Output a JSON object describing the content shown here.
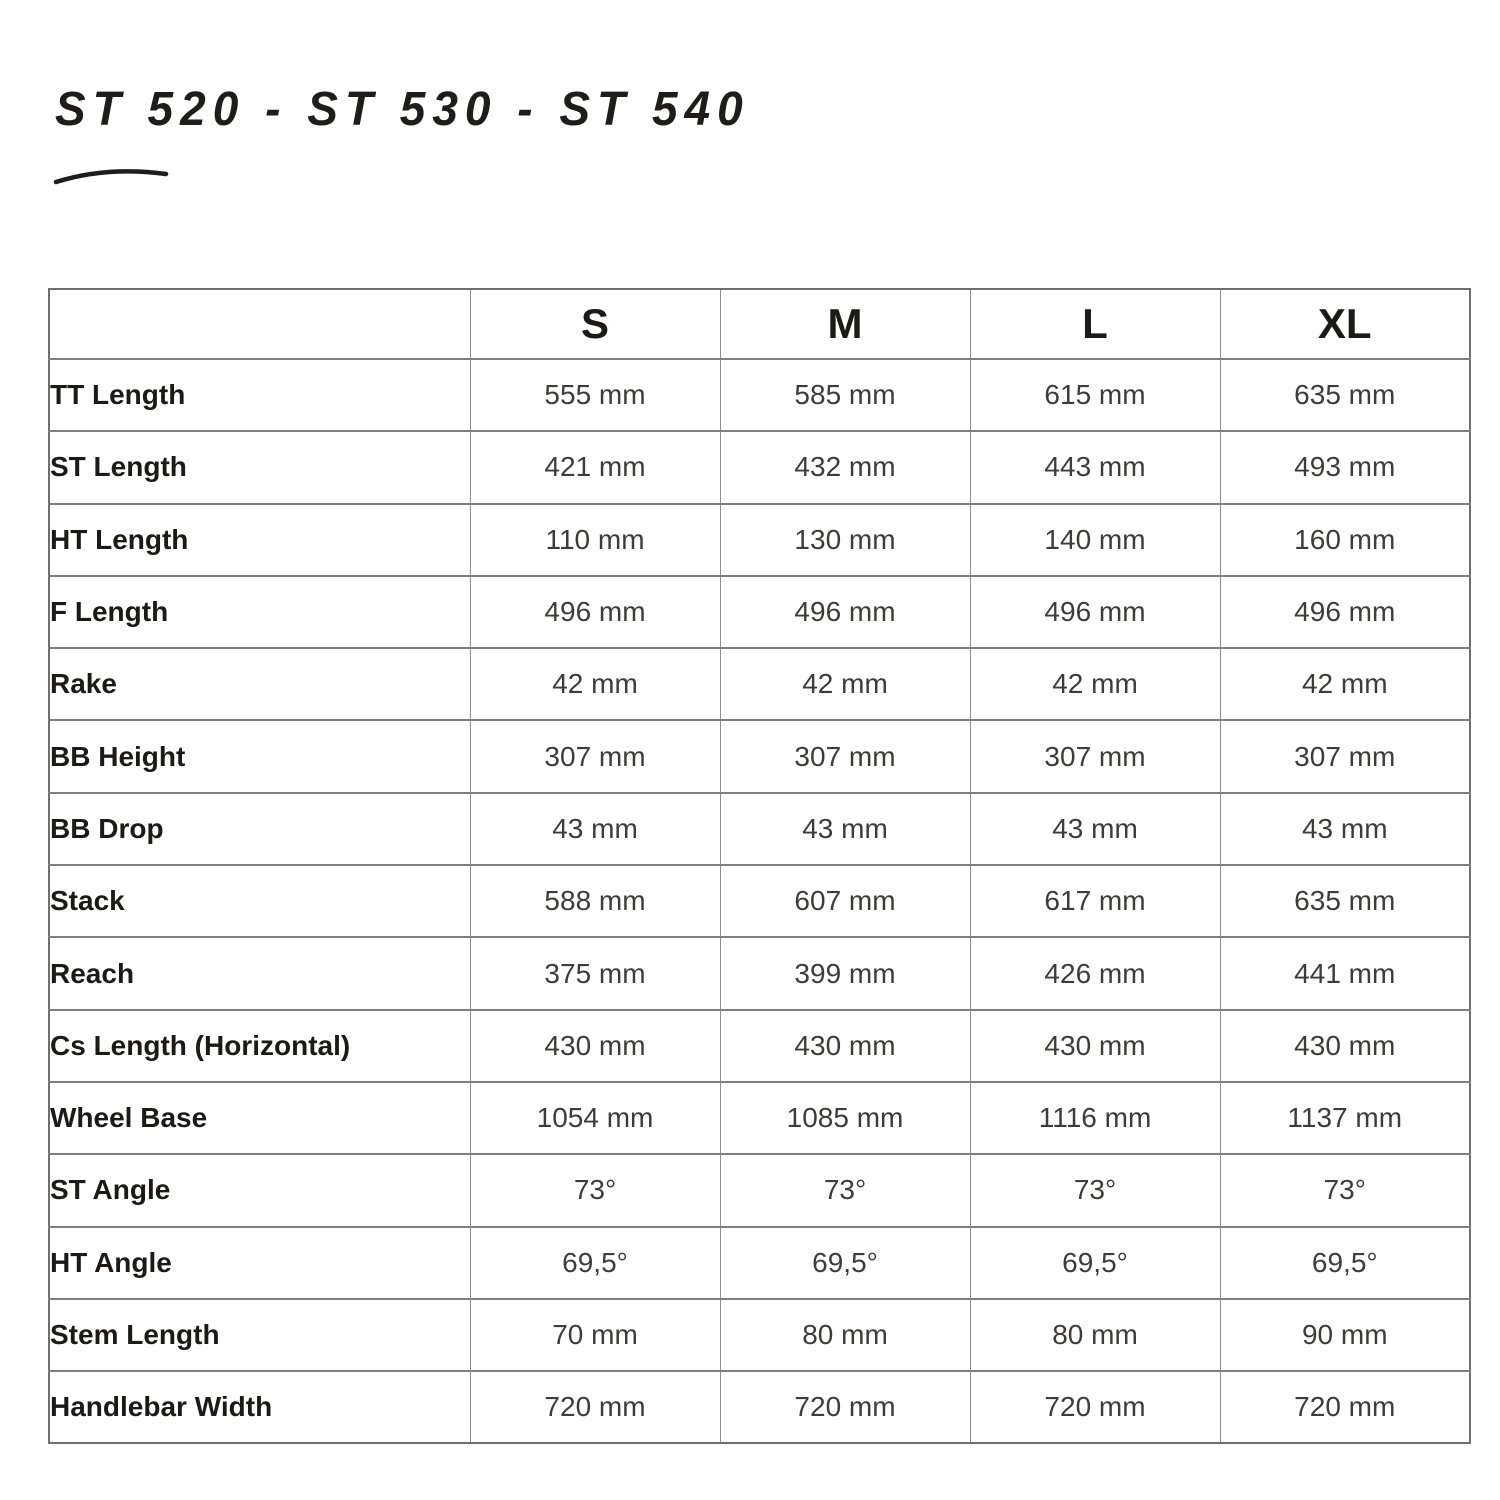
{
  "page_title": "ST 520 - ST 530 - ST 540",
  "table": {
    "size_headers": [
      "S",
      "M",
      "L",
      "XL"
    ],
    "rows": [
      {
        "label": "TT Length",
        "values": [
          "555 mm",
          "585 mm",
          "615 mm",
          "635 mm"
        ]
      },
      {
        "label": "ST Length",
        "values": [
          "421 mm",
          "432 mm",
          "443 mm",
          "493 mm"
        ]
      },
      {
        "label": "HT Length",
        "values": [
          "110 mm",
          "130 mm",
          "140 mm",
          "160 mm"
        ]
      },
      {
        "label": "F Length",
        "values": [
          "496 mm",
          "496 mm",
          "496 mm",
          "496 mm"
        ]
      },
      {
        "label": "Rake",
        "values": [
          "42 mm",
          "42 mm",
          "42 mm",
          "42 mm"
        ]
      },
      {
        "label": "BB Height",
        "values": [
          "307 mm",
          "307 mm",
          "307 mm",
          "307 mm"
        ]
      },
      {
        "label": "BB Drop",
        "values": [
          "43 mm",
          "43 mm",
          "43 mm",
          "43 mm"
        ]
      },
      {
        "label": "Stack",
        "values": [
          "588 mm",
          "607 mm",
          "617 mm",
          "635 mm"
        ]
      },
      {
        "label": "Reach",
        "values": [
          "375 mm",
          "399 mm",
          "426 mm",
          "441 mm"
        ]
      },
      {
        "label": "Cs Length (Horizontal)",
        "values": [
          "430 mm",
          "430 mm",
          "430 mm",
          "430 mm"
        ]
      },
      {
        "label": "Wheel Base",
        "values": [
          "1054 mm",
          "1085 mm",
          "1116 mm",
          "1137 mm"
        ]
      },
      {
        "label": "ST Angle",
        "values": [
          "73°",
          "73°",
          "73°",
          "73°"
        ]
      },
      {
        "label": "HT Angle",
        "values": [
          "69,5°",
          "69,5°",
          "69,5°",
          "69,5°"
        ]
      },
      {
        "label": "Stem Length",
        "values": [
          "70 mm",
          "80 mm",
          "80 mm",
          "90 mm"
        ]
      },
      {
        "label": "Handlebar Width",
        "values": [
          "720 mm",
          "720 mm",
          "720 mm",
          "720 mm"
        ]
      }
    ]
  },
  "colors": {
    "background": "#ffffff",
    "title_text": "#1e1d1c",
    "label_text": "#1b1a19",
    "value_text": "#3d3c3b",
    "border_horizontal": "#7f7f7f",
    "border_vertical": "#8f8f8f"
  }
}
